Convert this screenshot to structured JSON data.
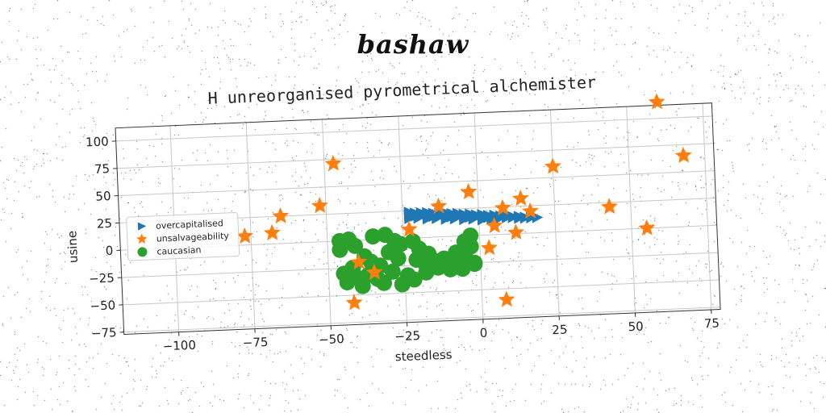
{
  "header": {
    "title": "bashaw"
  },
  "chart_data": {
    "type": "scatter",
    "title": "H unreorganised pyrometrical alchemister",
    "xlabel": "steedless",
    "ylabel": "usine",
    "xlim": [
      -118,
      78
    ],
    "ylim": [
      -77,
      112
    ],
    "xticks": [
      -100,
      -75,
      -50,
      -25,
      0,
      25,
      50,
      75
    ],
    "yticks": [
      -75,
      -50,
      -25,
      0,
      25,
      50,
      75,
      100
    ],
    "xtick_labels": [
      "−100",
      "−75",
      "−50",
      "−25",
      "0",
      "25",
      "50",
      "75"
    ],
    "ytick_labels": [
      "−75",
      "−50",
      "−25",
      "0",
      "25",
      "50",
      "75",
      "100"
    ],
    "grid": true,
    "legend_position": "center-left",
    "series": [
      {
        "name": "overcapitalised",
        "marker": "triangle-right",
        "color": "#1f77b4",
        "points": [
          [
            -23,
            24
          ],
          [
            -21,
            23
          ],
          [
            -19,
            23
          ],
          [
            -17,
            23
          ],
          [
            -15,
            22
          ],
          [
            -13,
            22
          ],
          [
            -11,
            22
          ],
          [
            -9,
            21
          ],
          [
            -7,
            21
          ],
          [
            -5,
            20
          ],
          [
            -3,
            20
          ],
          [
            -1,
            19
          ],
          [
            1,
            19
          ],
          [
            3,
            18
          ],
          [
            5,
            18
          ],
          [
            7,
            17
          ],
          [
            9,
            17
          ],
          [
            11,
            16
          ],
          [
            13,
            16
          ],
          [
            15,
            15
          ],
          [
            17,
            15
          ],
          [
            19,
            14
          ],
          [
            -23,
            21
          ],
          [
            -21,
            20
          ],
          [
            -19,
            20
          ],
          [
            -17,
            20
          ],
          [
            -15,
            19
          ],
          [
            -13,
            19
          ],
          [
            -11,
            19
          ],
          [
            -9,
            18
          ],
          [
            -7,
            18
          ],
          [
            -5,
            18
          ],
          [
            -3,
            17
          ],
          [
            -1,
            17
          ],
          [
            1,
            16
          ],
          [
            3,
            16
          ],
          [
            5,
            16
          ],
          [
            7,
            15
          ],
          [
            9,
            15
          ],
          [
            11,
            15
          ],
          [
            13,
            14
          ],
          [
            15,
            14
          ],
          [
            17,
            14
          ],
          [
            -23,
            18
          ],
          [
            -20,
            18
          ],
          [
            -17,
            17
          ],
          [
            -14,
            17
          ],
          [
            -11,
            16
          ],
          [
            -8,
            16
          ],
          [
            -5,
            15
          ],
          [
            -2,
            15
          ],
          [
            1,
            14
          ],
          [
            4,
            14
          ]
        ]
      },
      {
        "name": "unsalvageability",
        "marker": "star",
        "color": "#ff7f0e",
        "points": [
          [
            60,
            115
          ],
          [
            68,
            65
          ],
          [
            -47,
            71
          ],
          [
            25,
            60
          ],
          [
            -3,
            40
          ],
          [
            -52,
            33
          ],
          [
            14,
            32
          ],
          [
            -13,
            28
          ],
          [
            8,
            24
          ],
          [
            17,
            20
          ],
          [
            43,
            21
          ],
          [
            -65,
            25
          ],
          [
            -68,
            10
          ],
          [
            -77,
            8
          ],
          [
            -23,
            8
          ],
          [
            5,
            8
          ],
          [
            12,
            1
          ],
          [
            55,
            0
          ],
          [
            3,
            -12
          ],
          [
            -40,
            -20
          ],
          [
            -35,
            -30
          ],
          [
            -42,
            -57
          ],
          [
            8,
            -60
          ]
        ]
      },
      {
        "name": "caucasian",
        "marker": "circle",
        "color": "#2ca02c",
        "points": [
          [
            -46,
            0
          ],
          [
            -43,
            1
          ],
          [
            -46,
            -8
          ],
          [
            -41,
            -5
          ],
          [
            -35,
            3
          ],
          [
            -31,
            4
          ],
          [
            -28,
            -2
          ],
          [
            -26,
            -5
          ],
          [
            -22,
            -3
          ],
          [
            -20,
            -10
          ],
          [
            -17,
            -15
          ],
          [
            -12,
            -20
          ],
          [
            -8,
            -15
          ],
          [
            -5,
            -5
          ],
          [
            -3,
            0
          ],
          [
            -3,
            -10
          ],
          [
            -5,
            -20
          ],
          [
            -2,
            -25
          ],
          [
            -8,
            -28
          ],
          [
            -14,
            -28
          ],
          [
            -18,
            -32
          ],
          [
            -24,
            -34
          ],
          [
            -29,
            -30
          ],
          [
            -33,
            -24
          ],
          [
            -36,
            -20
          ],
          [
            -38,
            -15
          ],
          [
            -42,
            -25
          ],
          [
            -45,
            -30
          ],
          [
            -40,
            -35
          ],
          [
            -34,
            -36
          ],
          [
            -26,
            -42
          ],
          [
            -22,
            -38
          ],
          [
            -18,
            -25
          ],
          [
            -10,
            -30
          ],
          [
            -6,
            -30
          ],
          [
            -2,
            -26
          ],
          [
            -11,
            -24
          ],
          [
            -15,
            -22
          ],
          [
            -30,
            -12
          ],
          [
            -27,
            -18
          ],
          [
            -21,
            -20
          ],
          [
            -37,
            -32
          ],
          [
            -32,
            -40
          ],
          [
            -44,
            -38
          ],
          [
            -39,
            -42
          ]
        ]
      }
    ]
  }
}
